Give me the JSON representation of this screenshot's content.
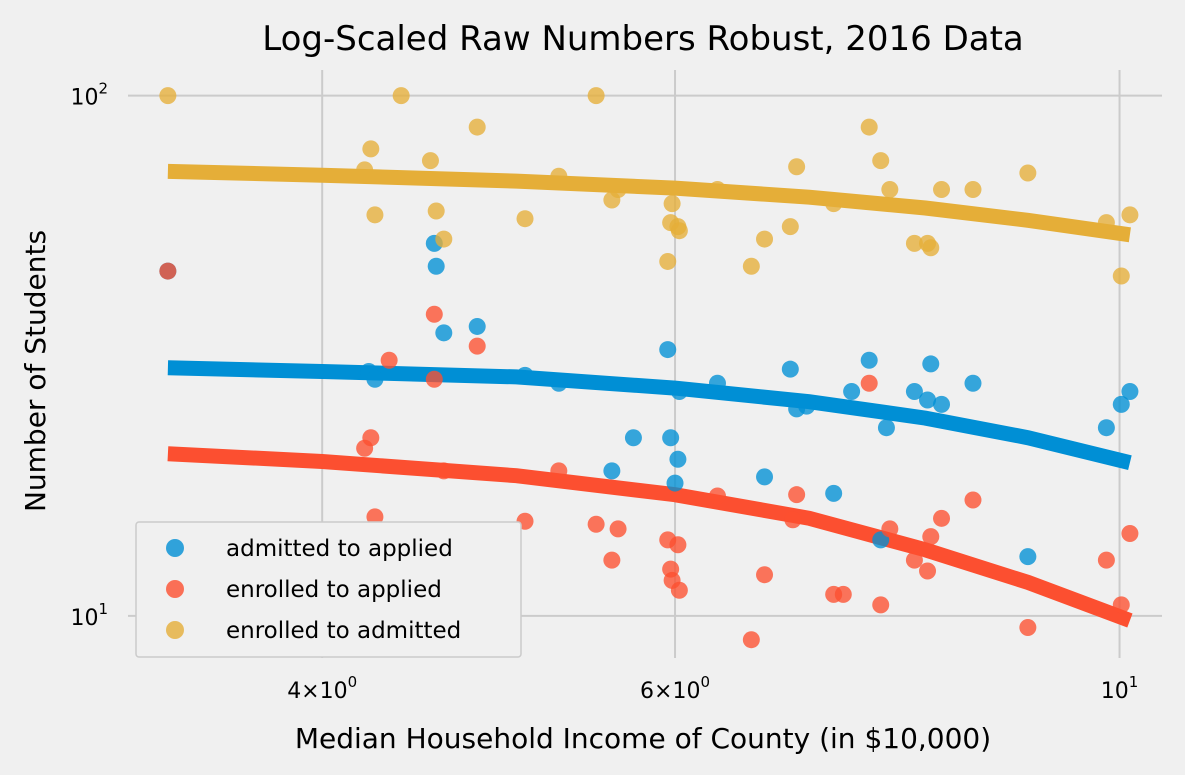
{
  "chart_data": {
    "type": "scatter",
    "title": "Log-Scaled Raw Numbers Robust, 2016 Data",
    "xlabel": "Median Household Income of County (in $10,000)",
    "ylabel": "Number of Students",
    "x_scale": "log",
    "y_scale": "log",
    "xlim": [
      3.2,
      10.5
    ],
    "ylim": [
      8.3,
      112
    ],
    "x_ticks": [
      {
        "value": 4,
        "base": "4",
        "sup": "0"
      },
      {
        "value": 6,
        "base": "6",
        "sup": "0"
      },
      {
        "value": 10,
        "base": "10",
        "sup": "1"
      }
    ],
    "y_ticks": [
      {
        "value": 10,
        "base": "10",
        "sup": "1"
      },
      {
        "value": 100,
        "base": "10",
        "sup": "2"
      }
    ],
    "grid": true,
    "legend": "lower-left",
    "series": [
      {
        "name": "admitted to applied",
        "color": "#008fd5",
        "points": [
          [
            3.35,
            46
          ],
          [
            4.22,
            29.5
          ],
          [
            4.25,
            28.5
          ],
          [
            4.55,
            52
          ],
          [
            4.56,
            47
          ],
          [
            4.6,
            35
          ],
          [
            4.78,
            36
          ],
          [
            5.05,
            29
          ],
          [
            5.25,
            28
          ],
          [
            5.58,
            19
          ],
          [
            5.72,
            22
          ],
          [
            5.95,
            32.5
          ],
          [
            5.97,
            22
          ],
          [
            6.0,
            18
          ],
          [
            6.02,
            20
          ],
          [
            6.03,
            27
          ],
          [
            6.3,
            28
          ],
          [
            6.65,
            18.5
          ],
          [
            6.85,
            29.8
          ],
          [
            6.9,
            25
          ],
          [
            6.98,
            25.3
          ],
          [
            7.2,
            17.2
          ],
          [
            7.35,
            27
          ],
          [
            7.5,
            31
          ],
          [
            7.6,
            14
          ],
          [
            7.65,
            23
          ],
          [
            7.9,
            27
          ],
          [
            8.02,
            26
          ],
          [
            8.05,
            30.5
          ],
          [
            8.15,
            25.5
          ],
          [
            8.45,
            28
          ],
          [
            9.0,
            13
          ],
          [
            9.85,
            23
          ],
          [
            10.02,
            25.5
          ],
          [
            10.12,
            27
          ]
        ]
      },
      {
        "name": "enrolled to applied",
        "color": "#fc4f30",
        "points": [
          [
            3.35,
            46
          ],
          [
            4.2,
            21
          ],
          [
            4.23,
            22
          ],
          [
            4.25,
            15.5
          ],
          [
            4.32,
            31
          ],
          [
            4.55,
            38
          ],
          [
            4.55,
            28.5
          ],
          [
            4.6,
            19
          ],
          [
            4.78,
            33
          ],
          [
            5.05,
            15.2
          ],
          [
            5.25,
            19
          ],
          [
            5.48,
            15
          ],
          [
            5.58,
            12.8
          ],
          [
            5.62,
            14.7
          ],
          [
            5.95,
            14
          ],
          [
            5.97,
            12.3
          ],
          [
            5.98,
            11.7
          ],
          [
            6.02,
            13.7
          ],
          [
            6.03,
            11.2
          ],
          [
            6.3,
            17
          ],
          [
            6.55,
            9
          ],
          [
            6.65,
            12
          ],
          [
            6.87,
            15.3
          ],
          [
            6.9,
            17.1
          ],
          [
            7.2,
            11
          ],
          [
            7.28,
            11
          ],
          [
            7.5,
            28
          ],
          [
            7.6,
            10.5
          ],
          [
            7.68,
            14.7
          ],
          [
            7.9,
            12.8
          ],
          [
            8.02,
            12.2
          ],
          [
            8.05,
            14.2
          ],
          [
            8.15,
            15.4
          ],
          [
            8.45,
            16.7
          ],
          [
            9.0,
            9.5
          ],
          [
            9.85,
            12.8
          ],
          [
            10.02,
            10.5
          ],
          [
            10.12,
            14.4
          ]
        ]
      },
      {
        "name": "enrolled to admitted",
        "color": "#e5ae38",
        "points": [
          [
            3.35,
            100
          ],
          [
            4.2,
            72
          ],
          [
            4.23,
            79
          ],
          [
            4.25,
            59
          ],
          [
            4.38,
            100
          ],
          [
            4.53,
            75
          ],
          [
            4.56,
            60
          ],
          [
            4.6,
            53
          ],
          [
            4.78,
            87
          ],
          [
            5.05,
            58
          ],
          [
            5.25,
            70
          ],
          [
            5.48,
            100
          ],
          [
            5.58,
            63
          ],
          [
            5.62,
            66
          ],
          [
            5.95,
            48
          ],
          [
            5.97,
            57
          ],
          [
            5.98,
            62
          ],
          [
            6.02,
            56
          ],
          [
            6.03,
            55
          ],
          [
            6.3,
            66
          ],
          [
            6.55,
            47
          ],
          [
            6.65,
            53
          ],
          [
            6.85,
            56
          ],
          [
            6.9,
            73
          ],
          [
            7.2,
            62
          ],
          [
            7.5,
            87
          ],
          [
            7.6,
            75
          ],
          [
            7.68,
            66
          ],
          [
            7.9,
            52
          ],
          [
            8.02,
            52
          ],
          [
            8.05,
            51
          ],
          [
            8.15,
            66
          ],
          [
            8.45,
            66
          ],
          [
            9.0,
            71
          ],
          [
            9.85,
            57
          ],
          [
            10.02,
            45
          ],
          [
            10.12,
            59
          ]
        ]
      }
    ],
    "fit_lines": [
      {
        "series": "admitted to applied",
        "x": [
          3.35,
          4.0,
          5.0,
          6.0,
          7.0,
          8.0,
          9.0,
          10.12
        ],
        "y": [
          30,
          29.5,
          28.8,
          27.4,
          25.8,
          24.0,
          22.0,
          19.7
        ]
      },
      {
        "series": "enrolled to applied",
        "x": [
          3.35,
          4.0,
          5.0,
          6.0,
          7.0,
          8.0,
          9.0,
          10.12
        ],
        "y": [
          20.5,
          19.8,
          18.6,
          17.1,
          15.4,
          13.4,
          11.6,
          9.8
        ]
      },
      {
        "series": "enrolled to admitted",
        "x": [
          3.35,
          4.0,
          5.0,
          6.0,
          7.0,
          8.0,
          9.0,
          10.12
        ],
        "y": [
          71.5,
          70.3,
          68.5,
          66.4,
          63.8,
          60.8,
          57.6,
          54.0
        ]
      }
    ]
  }
}
